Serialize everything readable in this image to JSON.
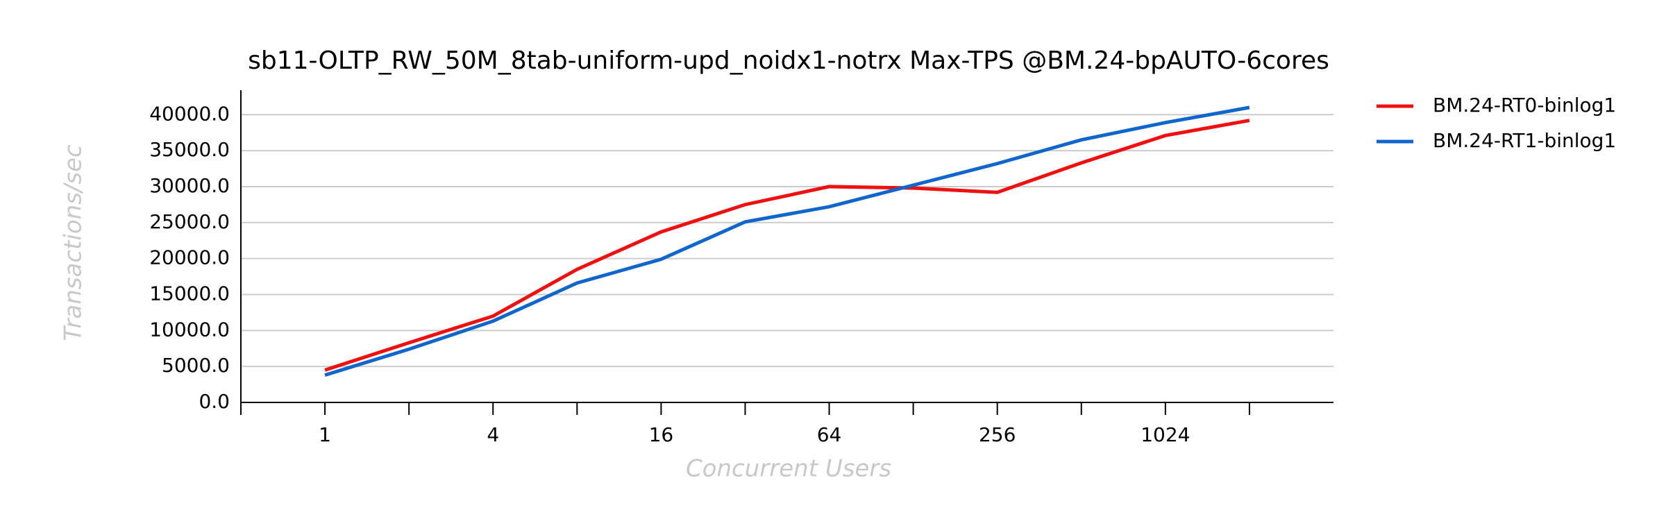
{
  "chart_data": {
    "type": "line",
    "title": "sb11-OLTP_RW_50M_8tab-uniform-upd_noidx1-notrx Max-TPS @BM.24-bpAUTO-6cores",
    "x_label": "Concurrent Users",
    "y_label": "Transactions/sec",
    "x": [
      1,
      2,
      4,
      8,
      16,
      32,
      64,
      128,
      256,
      512,
      1024,
      2048
    ],
    "x_scale": "log2",
    "xlim": [
      0.5,
      4096
    ],
    "xticks": [
      1,
      4,
      16,
      64,
      256,
      1024
    ],
    "xminor_ticks": [
      0.5,
      2,
      8,
      32,
      128,
      512,
      2048
    ],
    "ylim": [
      0,
      43400
    ],
    "yticks": [
      {
        "value": 0,
        "label": "0.0"
      },
      {
        "value": 5000,
        "label": "5000.0"
      },
      {
        "value": 10000,
        "label": "10000.0"
      },
      {
        "value": 15000,
        "label": "15000.0"
      },
      {
        "value": 20000,
        "label": "20000.0"
      },
      {
        "value": 25000,
        "label": "25000.0"
      },
      {
        "value": 30000,
        "label": "30000.0"
      },
      {
        "value": 35000,
        "label": "35000.0"
      },
      {
        "value": 40000,
        "label": "40000.0"
      }
    ],
    "grid": true,
    "legend": "outside-right",
    "series": [
      {
        "name": "BM.24-RT0-binlog1",
        "color": "#ee1111",
        "values": [
          4500,
          8300,
          12000,
          18500,
          23700,
          27500,
          30000,
          29800,
          29200,
          33300,
          37100,
          39200
        ]
      },
      {
        "name": "BM.24-RT1-binlog1",
        "color": "#1166cc",
        "values": [
          3800,
          7400,
          11300,
          16600,
          19900,
          25100,
          27200,
          30200,
          33200,
          36500,
          38900,
          41000
        ]
      }
    ]
  }
}
